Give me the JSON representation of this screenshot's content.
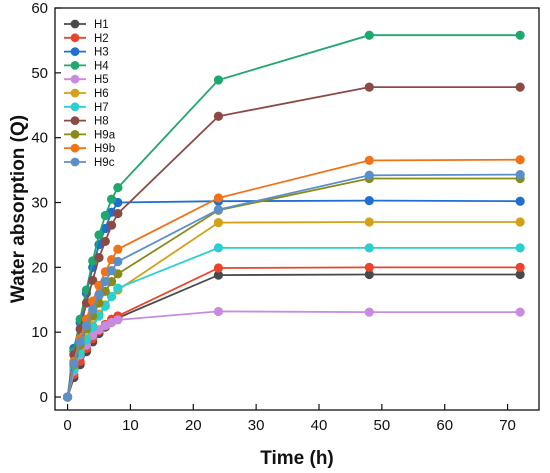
{
  "chart_data": {
    "type": "line",
    "xlabel": "Time (h)",
    "ylabel": "Water absorption (Q)",
    "xlim": [
      -2,
      75
    ],
    "ylim": [
      -2,
      60
    ],
    "xticks": [
      0,
      10,
      20,
      30,
      40,
      50,
      60,
      70
    ],
    "yticks": [
      0,
      10,
      20,
      30,
      40,
      50,
      60
    ],
    "x_tick_labels": [
      "0",
      "10",
      "20",
      "30",
      "40",
      "50",
      "60",
      "70"
    ],
    "y_tick_labels": [
      "0",
      "10",
      "20",
      "30",
      "40",
      "50",
      "60"
    ],
    "grid": false,
    "legend_position": "top-left",
    "x": [
      0,
      1,
      2,
      3,
      4,
      5,
      6,
      7,
      8,
      24,
      48,
      72
    ],
    "series": [
      {
        "name": "H1",
        "color": "#4a4a4a",
        "values": [
          0,
          3.0,
          5.0,
          7.0,
          8.5,
          9.8,
          10.8,
          11.6,
          12.2,
          18.8,
          18.9,
          18.9
        ]
      },
      {
        "name": "H2",
        "color": "#e8452e",
        "values": [
          0,
          3.5,
          5.5,
          7.5,
          9.0,
          10.2,
          11.2,
          12.0,
          12.5,
          19.9,
          20.0,
          20.0
        ]
      },
      {
        "name": "H3",
        "color": "#1f6fd1",
        "values": [
          0,
          7.5,
          11.5,
          16.0,
          20.0,
          23.5,
          26.0,
          28.5,
          30.0,
          30.2,
          30.3,
          30.2
        ]
      },
      {
        "name": "H4",
        "color": "#1fa76f",
        "values": [
          0,
          7.0,
          12.0,
          16.5,
          21.0,
          25.0,
          28.0,
          30.5,
          32.3,
          48.9,
          55.8,
          55.8
        ]
      },
      {
        "name": "H5",
        "color": "#c98be0",
        "values": [
          0,
          4.0,
          6.5,
          8.0,
          9.5,
          10.4,
          11.0,
          11.5,
          11.9,
          13.2,
          13.1,
          13.1
        ]
      },
      {
        "name": "H6",
        "color": "#d4a017",
        "values": [
          0,
          4.5,
          7.0,
          9.0,
          11.0,
          12.8,
          14.2,
          15.5,
          16.5,
          26.9,
          27.0,
          27.0
        ]
      },
      {
        "name": "H7",
        "color": "#2ccfcf",
        "values": [
          0,
          4.2,
          6.8,
          8.8,
          10.8,
          12.5,
          14.0,
          15.5,
          16.8,
          23.0,
          23.0,
          23.0
        ]
      },
      {
        "name": "H8",
        "color": "#8b4a45",
        "values": [
          0,
          6.5,
          10.5,
          14.5,
          18.0,
          21.5,
          24.0,
          26.5,
          28.3,
          43.3,
          47.8,
          47.8
        ]
      },
      {
        "name": "H9a",
        "color": "#8a8a1a",
        "values": [
          0,
          5.0,
          8.0,
          10.5,
          12.5,
          14.5,
          16.3,
          17.8,
          19.0,
          28.8,
          33.7,
          33.7
        ]
      },
      {
        "name": "H9b",
        "color": "#f07318",
        "values": [
          0,
          5.5,
          9.0,
          12.0,
          14.8,
          17.2,
          19.3,
          21.2,
          22.8,
          30.7,
          36.5,
          36.6
        ]
      },
      {
        "name": "H9c",
        "color": "#5b8fc7",
        "values": [
          0,
          5.2,
          8.5,
          11.0,
          13.5,
          15.8,
          17.8,
          19.5,
          20.9,
          28.9,
          34.2,
          34.3
        ]
      }
    ]
  }
}
